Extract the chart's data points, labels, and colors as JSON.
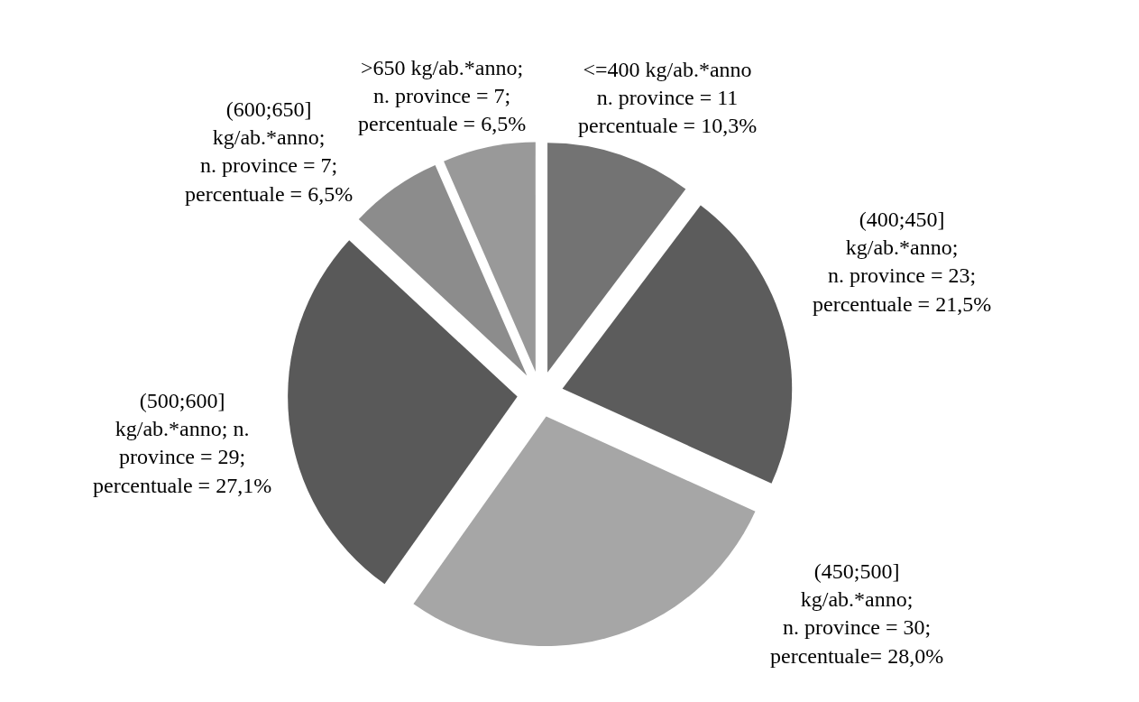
{
  "chart_data": {
    "type": "pie",
    "categories": [
      "<=400 kg/ab.*anno\nn. province = 11\npercentuale = 10,3%",
      "(400;450]\nkg/ab.*anno;\nn. province = 23;\npercentuale = 21,5%",
      "(450;500]\nkg/ab.*anno;\nn. province = 30;\npercentuale= 28,0%",
      "(500;600]\nkg/ab.*anno; n.\nprovince = 29;\npercentuale = 27,1%",
      "(600;650]\nkg/ab.*anno;\nn. province = 7;\npercentuale = 6,5%",
      ">650 kg/ab.*anno;\nn. province = 7;\npercentuale = 6,5%"
    ],
    "values": [
      11,
      23,
      30,
      29,
      7,
      7
    ],
    "colors": [
      "#737373",
      "#5c5c5c",
      "#a6a6a6",
      "#595959",
      "#8c8c8c",
      "#999999"
    ],
    "legend": false
  }
}
